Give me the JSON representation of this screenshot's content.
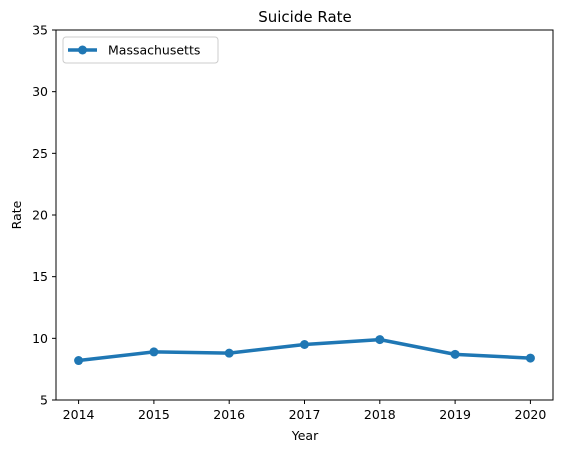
{
  "chart_data": {
    "type": "line",
    "title": "Suicide Rate",
    "xlabel": "Year",
    "ylabel": "Rate",
    "x": [
      2014,
      2015,
      2016,
      2017,
      2018,
      2019,
      2020
    ],
    "series": [
      {
        "name": "Massachusetts",
        "values": [
          8.2,
          8.9,
          8.8,
          9.5,
          9.9,
          8.7,
          8.4
        ],
        "color": "#1f77b4",
        "marker": "circle"
      }
    ],
    "xlim": [
      2013.7,
      2020.3
    ],
    "ylim": [
      5,
      35
    ],
    "xticks": [
      "2014",
      "2015",
      "2016",
      "2017",
      "2018",
      "2019",
      "2020"
    ],
    "yticks": [
      "5",
      "10",
      "15",
      "20",
      "25",
      "30",
      "35"
    ],
    "grid": false,
    "legend_position": "top-left"
  }
}
